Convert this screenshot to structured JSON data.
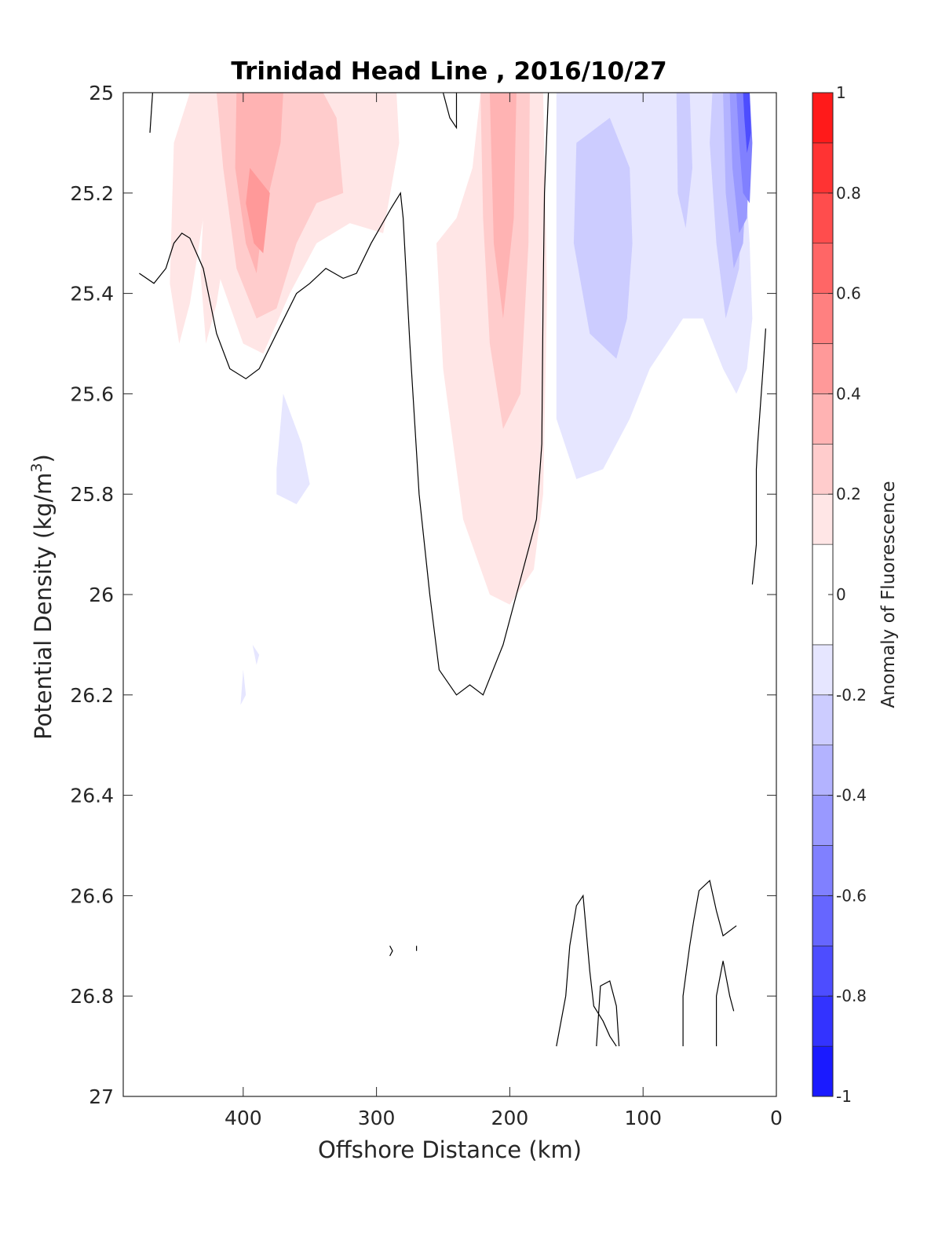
{
  "chart_data": {
    "type": "contourf",
    "title": "Trinidad Head Line , 2016/10/27",
    "xlabel": "Offshore Distance (km)",
    "ylabel": "Potential Density (kg/m",
    "ylabel_sup": "3",
    "ylabel_close": ")",
    "xlim": [
      490,
      0
    ],
    "ylim": [
      27,
      25
    ],
    "xticks": [
      "400",
      "300",
      "200",
      "100",
      "0"
    ],
    "xtick_values": [
      400,
      300,
      200,
      100,
      0
    ],
    "yticks": [
      "25",
      "25.2",
      "25.4",
      "25.6",
      "25.8",
      "26",
      "26.2",
      "26.4",
      "26.6",
      "26.8",
      "27"
    ],
    "ytick_values": [
      25,
      25.2,
      25.4,
      25.6,
      25.8,
      26,
      26.2,
      26.4,
      26.6,
      26.8,
      27
    ],
    "colorbar": {
      "label": "Anomaly of Fluorescence",
      "range": [
        -1,
        1
      ],
      "ticks": [
        "1",
        "0.8",
        "0.6",
        "0.4",
        "0.2",
        "0",
        "-0.2",
        "-0.4",
        "-0.6",
        "-0.8",
        "-1"
      ],
      "tick_values": [
        1,
        0.8,
        0.6,
        0.4,
        0.2,
        0,
        -0.2,
        -0.4,
        -0.6,
        -0.8,
        -1
      ],
      "levels": [
        -1,
        -0.9,
        -0.8,
        -0.7,
        -0.6,
        -0.5,
        -0.4,
        -0.3,
        -0.2,
        -0.1,
        0.1,
        0.2,
        0.3,
        0.4,
        0.5,
        0.6,
        0.7,
        0.8,
        0.9,
        1
      ],
      "colors": [
        "#0000ff",
        "#1a1aff",
        "#3333ff",
        "#4d4dff",
        "#6666ff",
        "#8080ff",
        "#9999ff",
        "#b3b3ff",
        "#ccccff",
        "#e6e6ff",
        "#ffffff",
        "#ffe6e6",
        "#ffcccc",
        "#ffb3b3",
        "#ff9999",
        "#ff8080",
        "#ff6666",
        "#ff4d4d",
        "#ff3333",
        "#ff1a1a",
        "#ff0000"
      ]
    },
    "regions": [
      {
        "level": 0.15,
        "pts": [
          [
            440,
            25
          ],
          [
            422,
            25
          ],
          [
            418,
            25.08
          ],
          [
            430,
            25.25
          ],
          [
            440,
            25.42
          ],
          [
            448,
            25.5
          ],
          [
            455,
            25.38
          ],
          [
            452,
            25.1
          ]
        ]
      },
      {
        "level": 0.15,
        "pts": [
          [
            420,
            25
          ],
          [
            400,
            25
          ],
          [
            395,
            25.05
          ],
          [
            410,
            25.25
          ],
          [
            420,
            25.42
          ],
          [
            428,
            25.5
          ],
          [
            432,
            25.36
          ],
          [
            428,
            25.12
          ]
        ]
      },
      {
        "level": 0.15,
        "pts": [
          [
            440,
            25
          ],
          [
            285,
            25
          ],
          [
            283,
            25.1
          ],
          [
            295,
            25.28
          ],
          [
            320,
            25.26
          ],
          [
            345,
            25.3
          ],
          [
            365,
            25.4
          ],
          [
            385,
            25.52
          ],
          [
            400,
            25.5
          ],
          [
            420,
            25.35
          ],
          [
            435,
            25.12
          ]
        ]
      },
      {
        "level": 0.25,
        "pts": [
          [
            420,
            25
          ],
          [
            340,
            25
          ],
          [
            330,
            25.05
          ],
          [
            325,
            25.2
          ],
          [
            345,
            25.22
          ],
          [
            360,
            25.3
          ],
          [
            375,
            25.43
          ],
          [
            390,
            25.45
          ],
          [
            405,
            25.35
          ],
          [
            415,
            25.15
          ]
        ]
      },
      {
        "level": 0.35,
        "pts": [
          [
            405,
            25
          ],
          [
            370,
            25
          ],
          [
            372,
            25.1
          ],
          [
            385,
            25.25
          ],
          [
            390,
            25.36
          ],
          [
            398,
            25.3
          ],
          [
            406,
            25.15
          ]
        ]
      },
      {
        "level": 0.45,
        "pts": [
          [
            395,
            25.15
          ],
          [
            380,
            25.2
          ],
          [
            385,
            25.32
          ],
          [
            392,
            25.3
          ],
          [
            398,
            25.22
          ]
        ]
      },
      {
        "level": 0.15,
        "pts": [
          [
            195,
            25
          ],
          [
            175,
            25
          ],
          [
            172,
            25.4
          ],
          [
            175,
            25.8
          ],
          [
            182,
            25.95
          ],
          [
            200,
            26.02
          ],
          [
            215,
            26
          ],
          [
            235,
            25.85
          ],
          [
            250,
            25.55
          ],
          [
            255,
            25.3
          ],
          [
            240,
            25.25
          ],
          [
            228,
            25.15
          ],
          [
            222,
            25
          ]
        ]
      },
      {
        "level": 0.25,
        "pts": [
          [
            222,
            25
          ],
          [
            185,
            25
          ],
          [
            186,
            25.3
          ],
          [
            192,
            25.6
          ],
          [
            205,
            25.67
          ],
          [
            215,
            25.5
          ],
          [
            220,
            25.25
          ]
        ]
      },
      {
        "level": 0.35,
        "pts": [
          [
            215,
            25
          ],
          [
            195,
            25
          ],
          [
            197,
            25.25
          ],
          [
            205,
            25.45
          ],
          [
            212,
            25.3
          ]
        ]
      },
      {
        "level": -0.15,
        "pts": [
          [
            165,
            25
          ],
          [
            30,
            25
          ],
          [
            25,
            25.1
          ],
          [
            20,
            25.3
          ],
          [
            18,
            25.45
          ],
          [
            22,
            25.55
          ],
          [
            30,
            25.6
          ],
          [
            40,
            25.55
          ],
          [
            55,
            25.45
          ],
          [
            70,
            25.45
          ],
          [
            95,
            25.55
          ],
          [
            110,
            25.65
          ],
          [
            130,
            25.75
          ],
          [
            150,
            25.77
          ],
          [
            165,
            25.65
          ],
          [
            165,
            25.2
          ]
        ]
      },
      {
        "level": -0.25,
        "pts": [
          [
            150,
            25.1
          ],
          [
            125,
            25.05
          ],
          [
            110,
            25.15
          ],
          [
            108,
            25.3
          ],
          [
            112,
            25.45
          ],
          [
            120,
            25.53
          ],
          [
            140,
            25.48
          ],
          [
            152,
            25.3
          ]
        ]
      },
      {
        "level": -0.25,
        "pts": [
          [
            75,
            25
          ],
          [
            65,
            25
          ],
          [
            63,
            25.15
          ],
          [
            68,
            25.27
          ],
          [
            74,
            25.2
          ]
        ]
      },
      {
        "level": -0.25,
        "pts": [
          [
            48,
            25
          ],
          [
            30,
            25
          ],
          [
            25,
            25.15
          ],
          [
            28,
            25.35
          ],
          [
            38,
            25.45
          ],
          [
            45,
            25.3
          ],
          [
            50,
            25.1
          ]
        ]
      },
      {
        "level": -0.35,
        "pts": [
          [
            40,
            25
          ],
          [
            25,
            25
          ],
          [
            22,
            25.15
          ],
          [
            25,
            25.3
          ],
          [
            32,
            25.35
          ],
          [
            38,
            25.2
          ]
        ]
      },
      {
        "level": -0.45,
        "pts": [
          [
            35,
            25
          ],
          [
            22,
            25
          ],
          [
            20,
            25.1
          ],
          [
            22,
            25.25
          ],
          [
            28,
            25.28
          ],
          [
            33,
            25.15
          ]
        ]
      },
      {
        "level": -0.6,
        "pts": [
          [
            30,
            25
          ],
          [
            20,
            25
          ],
          [
            18,
            25.1
          ],
          [
            20,
            25.22
          ],
          [
            25,
            25.2
          ],
          [
            28,
            25.1
          ]
        ]
      },
      {
        "level": -0.8,
        "pts": [
          [
            25,
            25
          ],
          [
            20,
            25
          ],
          [
            19,
            25.08
          ],
          [
            22,
            25.12
          ],
          [
            24,
            25.05
          ]
        ]
      },
      {
        "level": -0.15,
        "pts": [
          [
            370,
            25.6
          ],
          [
            375,
            25.75
          ],
          [
            375,
            25.8
          ],
          [
            360,
            25.82
          ],
          [
            350,
            25.78
          ],
          [
            356,
            25.7
          ]
        ]
      },
      {
        "level": -0.15,
        "pts": [
          [
            400,
            26.15
          ],
          [
            398,
            26.2
          ],
          [
            402,
            26.22
          ]
        ]
      },
      {
        "level": -0.15,
        "pts": [
          [
            393,
            26.1
          ],
          [
            390,
            26.14
          ],
          [
            388,
            26.12
          ]
        ]
      }
    ],
    "contour_lines": [
      {
        "level": 0,
        "pts": [
          [
            470,
            25.08
          ],
          [
            468,
            25
          ]
        ]
      },
      {
        "level": 0,
        "pts": [
          [
            478,
            25.36
          ],
          [
            467,
            25.38
          ],
          [
            458,
            25.35
          ],
          [
            452,
            25.3
          ],
          [
            446,
            25.28
          ],
          [
            440,
            25.29
          ],
          [
            430,
            25.35
          ],
          [
            420,
            25.48
          ],
          [
            410,
            25.55
          ],
          [
            398,
            25.57
          ],
          [
            388,
            25.55
          ],
          [
            375,
            25.48
          ],
          [
            360,
            25.4
          ],
          [
            350,
            25.38
          ],
          [
            338,
            25.35
          ],
          [
            325,
            25.37
          ],
          [
            315,
            25.36
          ],
          [
            304,
            25.3
          ],
          [
            289,
            25.23
          ],
          [
            282,
            25.2
          ],
          [
            280,
            25.25
          ],
          [
            275,
            25.5
          ],
          [
            268,
            25.8
          ],
          [
            260,
            26
          ],
          [
            253,
            26.15
          ],
          [
            240,
            26.2
          ],
          [
            230,
            26.18
          ],
          [
            220,
            26.2
          ],
          [
            205,
            26.1
          ],
          [
            195,
            26
          ],
          [
            180,
            25.85
          ],
          [
            176,
            25.7
          ],
          [
            175,
            25.4
          ],
          [
            174,
            25.2
          ],
          [
            171,
            25
          ]
        ]
      },
      {
        "level": 0,
        "pts": [
          [
            250,
            25
          ],
          [
            245,
            25.05
          ],
          [
            240,
            25.07
          ],
          [
            240,
            25
          ]
        ]
      },
      {
        "level": 0,
        "pts": [
          [
            18,
            25.98
          ],
          [
            15,
            25.9
          ],
          [
            15,
            25.75
          ],
          [
            14,
            25.7
          ],
          [
            10,
            25.55
          ],
          [
            8,
            25.47
          ]
        ]
      },
      {
        "level": 0,
        "pts": [
          [
            165,
            26.9
          ],
          [
            158,
            26.8
          ],
          [
            155,
            26.7
          ],
          [
            150,
            26.62
          ],
          [
            145,
            26.6
          ],
          [
            140,
            26.75
          ],
          [
            137,
            26.82
          ],
          [
            130,
            26.85
          ],
          [
            125,
            26.88
          ],
          [
            120,
            26.9
          ]
        ]
      },
      {
        "level": 0,
        "pts": [
          [
            135,
            26.9
          ],
          [
            132,
            26.78
          ],
          [
            125,
            26.77
          ],
          [
            120,
            26.82
          ],
          [
            118,
            26.9
          ]
        ]
      },
      {
        "level": 0,
        "pts": [
          [
            70,
            26.9
          ],
          [
            70,
            26.8
          ],
          [
            65,
            26.7
          ],
          [
            62,
            26.65
          ],
          [
            58,
            26.59
          ],
          [
            50,
            26.57
          ],
          [
            45,
            26.63
          ],
          [
            40,
            26.68
          ],
          [
            30,
            26.66
          ]
        ]
      },
      {
        "level": 0,
        "pts": [
          [
            45,
            26.9
          ],
          [
            45,
            26.8
          ],
          [
            40,
            26.73
          ],
          [
            35,
            26.8
          ],
          [
            32,
            26.83
          ]
        ]
      },
      {
        "level": 0,
        "pts": [
          [
            290,
            26.7
          ],
          [
            288,
            26.71
          ],
          [
            290,
            26.72
          ]
        ]
      },
      {
        "level": 0,
        "pts": [
          [
            270,
            26.7
          ],
          [
            270,
            26.71
          ]
        ]
      }
    ]
  }
}
